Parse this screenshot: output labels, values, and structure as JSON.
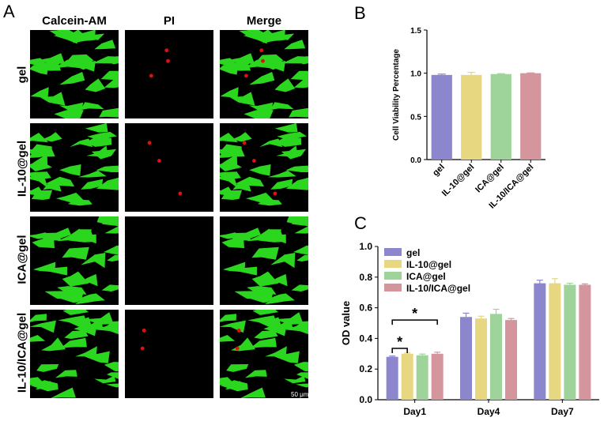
{
  "panels": {
    "a": "A",
    "b": "B",
    "c": "C"
  },
  "panel_a": {
    "columns": [
      "Calcein-AM",
      "PI",
      "Merge"
    ],
    "rows": [
      "gel",
      "IL-10@gel",
      "ICA@gel",
      "IL-10/ICA@gel"
    ],
    "scale_bar": "50 μm",
    "colors": {
      "live": "#2bd61e",
      "dead": "#e01010",
      "background": "#000000"
    }
  },
  "chart_data": [
    {
      "type": "bar",
      "title": "",
      "xlabel": "",
      "ylabel": "Cell Viability Percentage",
      "categories": [
        "gel",
        "IL-10@gel",
        "ICA@gel",
        "IL-10/ICA@gel"
      ],
      "values": [
        0.98,
        0.98,
        0.99,
        1.0
      ],
      "errors": [
        0.01,
        0.03,
        0.005,
        0.003
      ],
      "ylim": [
        0,
        1.5
      ],
      "yticks": [
        "0.0",
        "0.5",
        "1.0",
        "1.5"
      ],
      "colors": [
        "#8c86cc",
        "#e6d780",
        "#9ed49a",
        "#d4959c"
      ],
      "legend": "none",
      "grid": false
    },
    {
      "type": "bar",
      "title": "",
      "xlabel": "",
      "ylabel": "OD value",
      "categories": [
        "Day1",
        "Day4",
        "Day7"
      ],
      "series": [
        {
          "name": "gel",
          "values": [
            0.28,
            0.54,
            0.76
          ],
          "errors": [
            0.005,
            0.025,
            0.02
          ],
          "color": "#8c86cc"
        },
        {
          "name": "IL-10@gel",
          "values": [
            0.3,
            0.53,
            0.76
          ],
          "errors": [
            0.005,
            0.015,
            0.03
          ],
          "color": "#e6d780"
        },
        {
          "name": "ICA@gel",
          "values": [
            0.29,
            0.56,
            0.75
          ],
          "errors": [
            0.008,
            0.03,
            0.01
          ],
          "color": "#9ed49a"
        },
        {
          "name": "IL-10/ICA@gel",
          "values": [
            0.3,
            0.52,
            0.75
          ],
          "errors": [
            0.01,
            0.01,
            0.006
          ],
          "color": "#d4959c"
        }
      ],
      "ylim": [
        0,
        1.0
      ],
      "yticks": [
        "0.0",
        "0.2",
        "0.4",
        "0.6",
        "0.8",
        "1.0"
      ],
      "legend": "top-left",
      "grid": false,
      "annotations": [
        {
          "text": "*",
          "from_series": 0,
          "to_series": 1,
          "category": "Day1"
        },
        {
          "text": "*",
          "from_series": 0,
          "to_series": 3,
          "category": "Day1"
        }
      ]
    }
  ]
}
